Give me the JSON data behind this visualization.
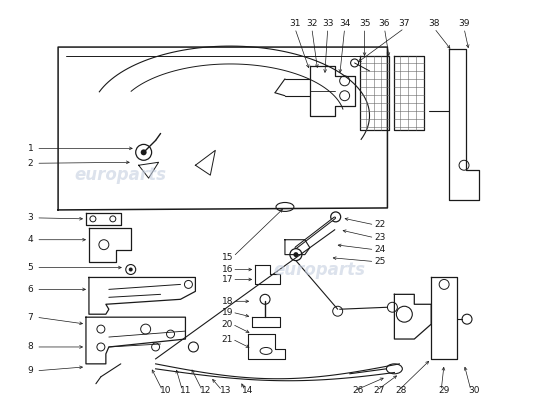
{
  "background_color": "#ffffff",
  "line_color": "#1a1a1a",
  "fig_width": 5.5,
  "fig_height": 4.0,
  "dpi": 100
}
